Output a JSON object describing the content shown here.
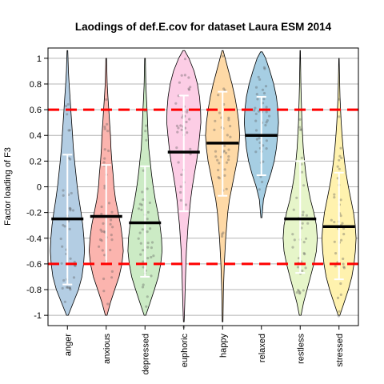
{
  "chart_data": {
    "type": "violin",
    "title": "Laodings of def.E.cov for dataset Laura ESM 2014",
    "xlabel": "",
    "ylabel": "Factor loading of F3",
    "ylim": [
      -1.08,
      1.08
    ],
    "yticks": [
      -1,
      -0.8,
      -0.6,
      -0.4,
      -0.2,
      0,
      0.2,
      0.4,
      0.6,
      0.8,
      1
    ],
    "ytick_labels": [
      "-1",
      "-0.8",
      "-0.6",
      "-0.4",
      "-0.2",
      "0",
      "0.2",
      "0.4",
      "0.6",
      "0.8",
      "1"
    ],
    "grid": true,
    "reference_lines": [
      0.6,
      -0.6
    ],
    "reference_line_color": "#ff0000",
    "categories": [
      "anger",
      "anxious",
      "depressed",
      "euphoric",
      "happy",
      "relaxed",
      "restless",
      "stressed"
    ],
    "colors": [
      "#b3cde3",
      "#fbb4ae",
      "#ccebc5",
      "#fccde5",
      "#fed9a6",
      "#a6cee3",
      "#e6f5c9",
      "#fff2ae"
    ],
    "means": [
      -0.25,
      -0.23,
      -0.28,
      0.27,
      0.34,
      0.4,
      -0.25,
      -0.31
    ],
    "sd_ranges": [
      [
        -0.76,
        0.25
      ],
      [
        -0.6,
        0.17
      ],
      [
        -0.7,
        0.16
      ],
      [
        -0.19,
        0.71
      ],
      [
        -0.07,
        0.74
      ],
      [
        0.09,
        0.7
      ],
      [
        -0.67,
        0.2
      ],
      [
        -0.72,
        0.11
      ]
    ],
    "extents": [
      [
        -1.0,
        1.06
      ],
      [
        -1.0,
        1.0
      ],
      [
        -1.0,
        1.0
      ],
      [
        -1.05,
        1.06
      ],
      [
        -1.05,
        1.06
      ],
      [
        -0.24,
        1.05
      ],
      [
        -1.0,
        1.06
      ],
      [
        -1.0,
        1.0
      ]
    ],
    "densities": [
      [
        [
          -1.0,
          0.05
        ],
        [
          -0.9,
          0.35
        ],
        [
          -0.8,
          0.65
        ],
        [
          -0.7,
          0.85
        ],
        [
          -0.6,
          0.95
        ],
        [
          -0.5,
          1.0
        ],
        [
          -0.4,
          0.97
        ],
        [
          -0.3,
          0.9
        ],
        [
          -0.2,
          0.8
        ],
        [
          -0.1,
          0.68
        ],
        [
          0.0,
          0.58
        ],
        [
          0.1,
          0.5
        ],
        [
          0.2,
          0.42
        ],
        [
          0.3,
          0.35
        ],
        [
          0.4,
          0.3
        ],
        [
          0.5,
          0.25
        ],
        [
          0.6,
          0.2
        ],
        [
          0.7,
          0.15
        ],
        [
          0.8,
          0.1
        ],
        [
          0.9,
          0.06
        ],
        [
          1.06,
          0.02
        ]
      ],
      [
        [
          -1.0,
          0.05
        ],
        [
          -0.9,
          0.25
        ],
        [
          -0.8,
          0.5
        ],
        [
          -0.7,
          0.75
        ],
        [
          -0.6,
          0.92
        ],
        [
          -0.5,
          1.0
        ],
        [
          -0.4,
          0.95
        ],
        [
          -0.3,
          0.85
        ],
        [
          -0.2,
          0.7
        ],
        [
          -0.1,
          0.55
        ],
        [
          0.0,
          0.45
        ],
        [
          0.1,
          0.4
        ],
        [
          0.2,
          0.33
        ],
        [
          0.3,
          0.28
        ],
        [
          0.4,
          0.25
        ],
        [
          0.5,
          0.2
        ],
        [
          0.6,
          0.15
        ],
        [
          0.7,
          0.1
        ],
        [
          0.8,
          0.06
        ],
        [
          1.0,
          0.02
        ]
      ],
      [
        [
          -1.0,
          0.05
        ],
        [
          -0.9,
          0.3
        ],
        [
          -0.8,
          0.55
        ],
        [
          -0.7,
          0.78
        ],
        [
          -0.6,
          0.92
        ],
        [
          -0.5,
          1.0
        ],
        [
          -0.4,
          0.97
        ],
        [
          -0.3,
          0.88
        ],
        [
          -0.2,
          0.75
        ],
        [
          -0.1,
          0.6
        ],
        [
          0.0,
          0.48
        ],
        [
          0.1,
          0.38
        ],
        [
          0.2,
          0.3
        ],
        [
          0.3,
          0.22
        ],
        [
          0.4,
          0.18
        ],
        [
          0.5,
          0.15
        ],
        [
          0.6,
          0.12
        ],
        [
          0.7,
          0.08
        ],
        [
          0.8,
          0.05
        ],
        [
          1.0,
          0.02
        ]
      ],
      [
        [
          -1.05,
          0.02
        ],
        [
          -0.9,
          0.06
        ],
        [
          -0.7,
          0.1
        ],
        [
          -0.5,
          0.15
        ],
        [
          -0.3,
          0.25
        ],
        [
          -0.1,
          0.4
        ],
        [
          0.0,
          0.5
        ],
        [
          0.1,
          0.62
        ],
        [
          0.2,
          0.75
        ],
        [
          0.3,
          0.85
        ],
        [
          0.4,
          0.93
        ],
        [
          0.5,
          1.0
        ],
        [
          0.6,
          0.98
        ],
        [
          0.7,
          0.92
        ],
        [
          0.8,
          0.8
        ],
        [
          0.9,
          0.6
        ],
        [
          1.0,
          0.3
        ],
        [
          1.06,
          0.05
        ]
      ],
      [
        [
          -1.05,
          0.02
        ],
        [
          -0.8,
          0.05
        ],
        [
          -0.6,
          0.1
        ],
        [
          -0.4,
          0.18
        ],
        [
          -0.2,
          0.3
        ],
        [
          -0.1,
          0.4
        ],
        [
          0.0,
          0.55
        ],
        [
          0.1,
          0.7
        ],
        [
          0.2,
          0.85
        ],
        [
          0.3,
          0.95
        ],
        [
          0.4,
          1.0
        ],
        [
          0.5,
          0.95
        ],
        [
          0.6,
          0.85
        ],
        [
          0.7,
          0.72
        ],
        [
          0.8,
          0.55
        ],
        [
          0.9,
          0.35
        ],
        [
          1.0,
          0.15
        ],
        [
          1.06,
          0.03
        ]
      ],
      [
        [
          -0.24,
          0.03
        ],
        [
          -0.1,
          0.12
        ],
        [
          0.0,
          0.3
        ],
        [
          0.1,
          0.55
        ],
        [
          0.2,
          0.75
        ],
        [
          0.3,
          0.88
        ],
        [
          0.4,
          0.95
        ],
        [
          0.5,
          1.0
        ],
        [
          0.6,
          0.97
        ],
        [
          0.7,
          0.88
        ],
        [
          0.8,
          0.72
        ],
        [
          0.9,
          0.5
        ],
        [
          1.0,
          0.25
        ],
        [
          1.05,
          0.05
        ]
      ],
      [
        [
          -1.0,
          0.05
        ],
        [
          -0.9,
          0.2
        ],
        [
          -0.8,
          0.4
        ],
        [
          -0.7,
          0.6
        ],
        [
          -0.6,
          0.8
        ],
        [
          -0.5,
          0.95
        ],
        [
          -0.4,
          1.0
        ],
        [
          -0.3,
          0.95
        ],
        [
          -0.2,
          0.8
        ],
        [
          -0.1,
          0.6
        ],
        [
          0.0,
          0.45
        ],
        [
          0.1,
          0.33
        ],
        [
          0.2,
          0.25
        ],
        [
          0.3,
          0.18
        ],
        [
          0.4,
          0.14
        ],
        [
          0.5,
          0.1
        ],
        [
          0.6,
          0.08
        ],
        [
          0.7,
          0.06
        ],
        [
          0.8,
          0.04
        ],
        [
          1.06,
          0.01
        ]
      ],
      [
        [
          -1.0,
          0.05
        ],
        [
          -0.9,
          0.3
        ],
        [
          -0.8,
          0.55
        ],
        [
          -0.7,
          0.75
        ],
        [
          -0.6,
          0.88
        ],
        [
          -0.5,
          0.96
        ],
        [
          -0.4,
          1.0
        ],
        [
          -0.3,
          0.95
        ],
        [
          -0.2,
          0.85
        ],
        [
          -0.1,
          0.7
        ],
        [
          0.0,
          0.55
        ],
        [
          0.1,
          0.42
        ],
        [
          0.2,
          0.32
        ],
        [
          0.3,
          0.24
        ],
        [
          0.4,
          0.18
        ],
        [
          0.5,
          0.13
        ],
        [
          0.6,
          0.09
        ],
        [
          0.7,
          0.06
        ],
        [
          0.8,
          0.04
        ],
        [
          1.0,
          0.01
        ]
      ]
    ]
  }
}
